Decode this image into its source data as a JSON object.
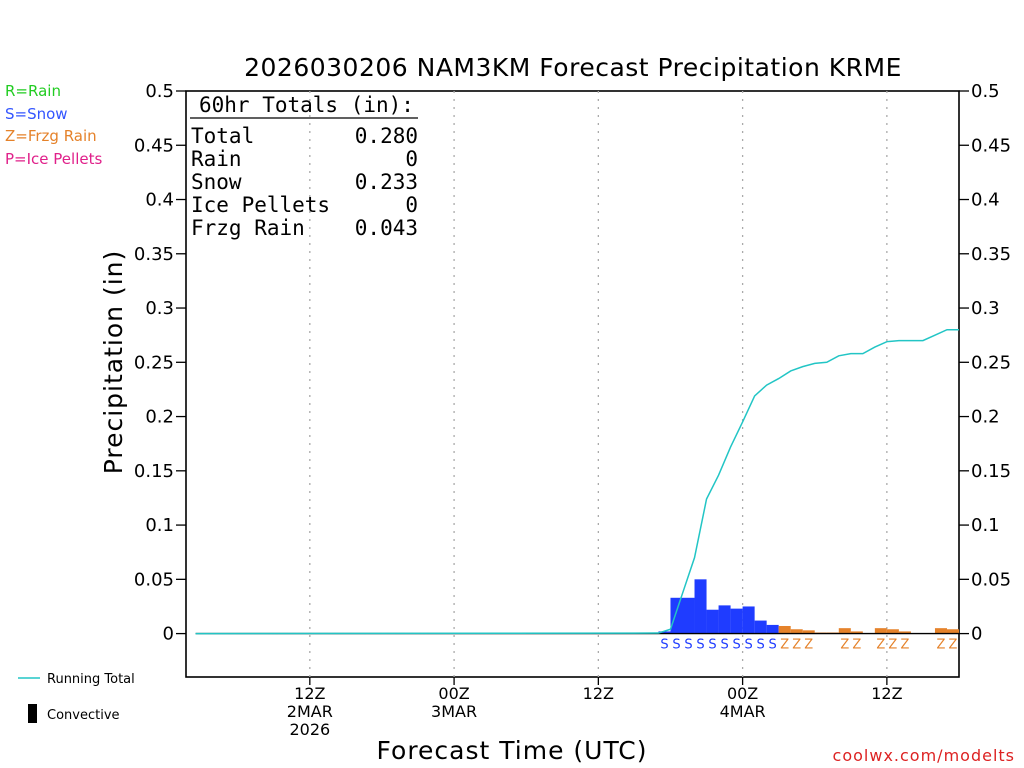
{
  "chart_data": {
    "type": "bar",
    "title": "2026030206 NAM3KM Forecast Precipitation KRME",
    "xlabel": "Forecast Time (UTC)",
    "ylabel": "Precipitation (in)",
    "ylim": [
      -0.04,
      0.5
    ],
    "xlim": [
      -4.3,
      60
    ],
    "y_ticks": [
      "0.5",
      "0.45",
      "0.4",
      "0.35",
      "0.3",
      "0.25",
      "0.2",
      "0.15",
      "0.1",
      "0.05",
      "0"
    ],
    "y_tick_values": [
      0.5,
      0.45,
      0.4,
      0.35,
      0.3,
      0.25,
      0.2,
      0.15,
      0.1,
      0.05,
      0
    ],
    "x_ticks": [
      {
        "hour": 6,
        "line1": "12Z",
        "line2": "2MAR",
        "line3": "2026"
      },
      {
        "hour": 18,
        "line1": "00Z",
        "line2": "3MAR",
        "line3": ""
      },
      {
        "hour": 30,
        "line1": "12Z",
        "line2": "",
        "line3": ""
      },
      {
        "hour": 42,
        "line1": "00Z",
        "line2": "4MAR",
        "line3": ""
      },
      {
        "hour": 54,
        "line1": "12Z",
        "line2": "",
        "line3": ""
      }
    ],
    "gridlines": "vertical-dotted",
    "series": [
      {
        "name": "Snow",
        "color": "#1f3cff",
        "hours": [
          36,
          37,
          38,
          39,
          40,
          41,
          42,
          43,
          44,
          45,
          46
        ],
        "values": [
          0.002,
          0.033,
          0.033,
          0.05,
          0.022,
          0.026,
          0.023,
          0.025,
          0.012,
          0.008,
          0.0
        ]
      },
      {
        "name": "Frzg Rain",
        "color": "#e5822a",
        "hours": [
          46,
          47,
          48,
          49,
          50,
          51,
          52,
          53,
          54,
          55,
          56,
          57,
          58,
          59,
          60
        ],
        "values": [
          0.007,
          0.004,
          0.003,
          0.001,
          0.001,
          0.005,
          0.002,
          0.0,
          0.005,
          0.004,
          0.002,
          0.0,
          0.0,
          0.005,
          0.004
        ]
      }
    ],
    "running_total": {
      "name": "Running Total",
      "color": "#22c5c5",
      "hours": [
        -4.3,
        35,
        36,
        37,
        38,
        39,
        40,
        41,
        42,
        43,
        44,
        45,
        46,
        47,
        48,
        49,
        50,
        51,
        52,
        53,
        54,
        55,
        56,
        57,
        58,
        59,
        60
      ],
      "values": [
        0,
        0.0005,
        0.004,
        0.037,
        0.07,
        0.124,
        0.146,
        0.172,
        0.195,
        0.219,
        0.229,
        0.235,
        0.242,
        0.246,
        0.249,
        0.25,
        0.256,
        0.258,
        0.258,
        0.264,
        0.269,
        0.27,
        0.27,
        0.27,
        0.275,
        0.28,
        0.28
      ]
    },
    "ptype_markers": [
      {
        "hour": 36,
        "label": "S",
        "color": "#1f3cff"
      },
      {
        "hour": 37,
        "label": "S",
        "color": "#1f3cff"
      },
      {
        "hour": 38,
        "label": "S",
        "color": "#1f3cff"
      },
      {
        "hour": 39,
        "label": "S",
        "color": "#1f3cff"
      },
      {
        "hour": 40,
        "label": "S",
        "color": "#1f3cff"
      },
      {
        "hour": 41,
        "label": "S",
        "color": "#1f3cff"
      },
      {
        "hour": 42,
        "label": "S",
        "color": "#1f3cff"
      },
      {
        "hour": 43,
        "label": "S",
        "color": "#1f3cff"
      },
      {
        "hour": 44,
        "label": "S",
        "color": "#1f3cff"
      },
      {
        "hour": 45,
        "label": "S",
        "color": "#1f3cff"
      },
      {
        "hour": 46,
        "label": "Z",
        "color": "#e5822a"
      },
      {
        "hour": 47,
        "label": "Z",
        "color": "#e5822a"
      },
      {
        "hour": 48,
        "label": "Z",
        "color": "#e5822a"
      },
      {
        "hour": 51,
        "label": "Z",
        "color": "#e5822a"
      },
      {
        "hour": 52,
        "label": "Z",
        "color": "#e5822a"
      },
      {
        "hour": 54,
        "label": "Z",
        "color": "#e5822a"
      },
      {
        "hour": 55,
        "label": "Z",
        "color": "#e5822a"
      },
      {
        "hour": 56,
        "label": "Z",
        "color": "#e5822a"
      },
      {
        "hour": 59,
        "label": "Z",
        "color": "#e5822a"
      },
      {
        "hour": 60,
        "label": "Z",
        "color": "#e5822a"
      }
    ]
  },
  "ptype_legend": [
    {
      "text": "R=Rain",
      "color": "#22cc22"
    },
    {
      "text": "S=Snow",
      "color": "#3355ff"
    },
    {
      "text": "Z=Frzg Rain",
      "color": "#e5822a"
    },
    {
      "text": "P=Ice Pellets",
      "color": "#e0208a"
    }
  ],
  "totals_box": {
    "header": "60hr Totals (in):",
    "rows": [
      {
        "label": "Total",
        "value": "0.280"
      },
      {
        "label": "Rain",
        "value": "0"
      },
      {
        "label": "Snow",
        "value": "0.233"
      },
      {
        "label": "Ice Pellets",
        "value": "0"
      },
      {
        "label": "Frzg Rain",
        "value": "0.043"
      }
    ]
  },
  "bottom_legend": {
    "running_total": "Running Total",
    "convective": "Convective"
  },
  "credit": "coolwx.com/modelts",
  "colors": {
    "running_total_line": "#22c5c5",
    "credit": "#dd2222"
  }
}
